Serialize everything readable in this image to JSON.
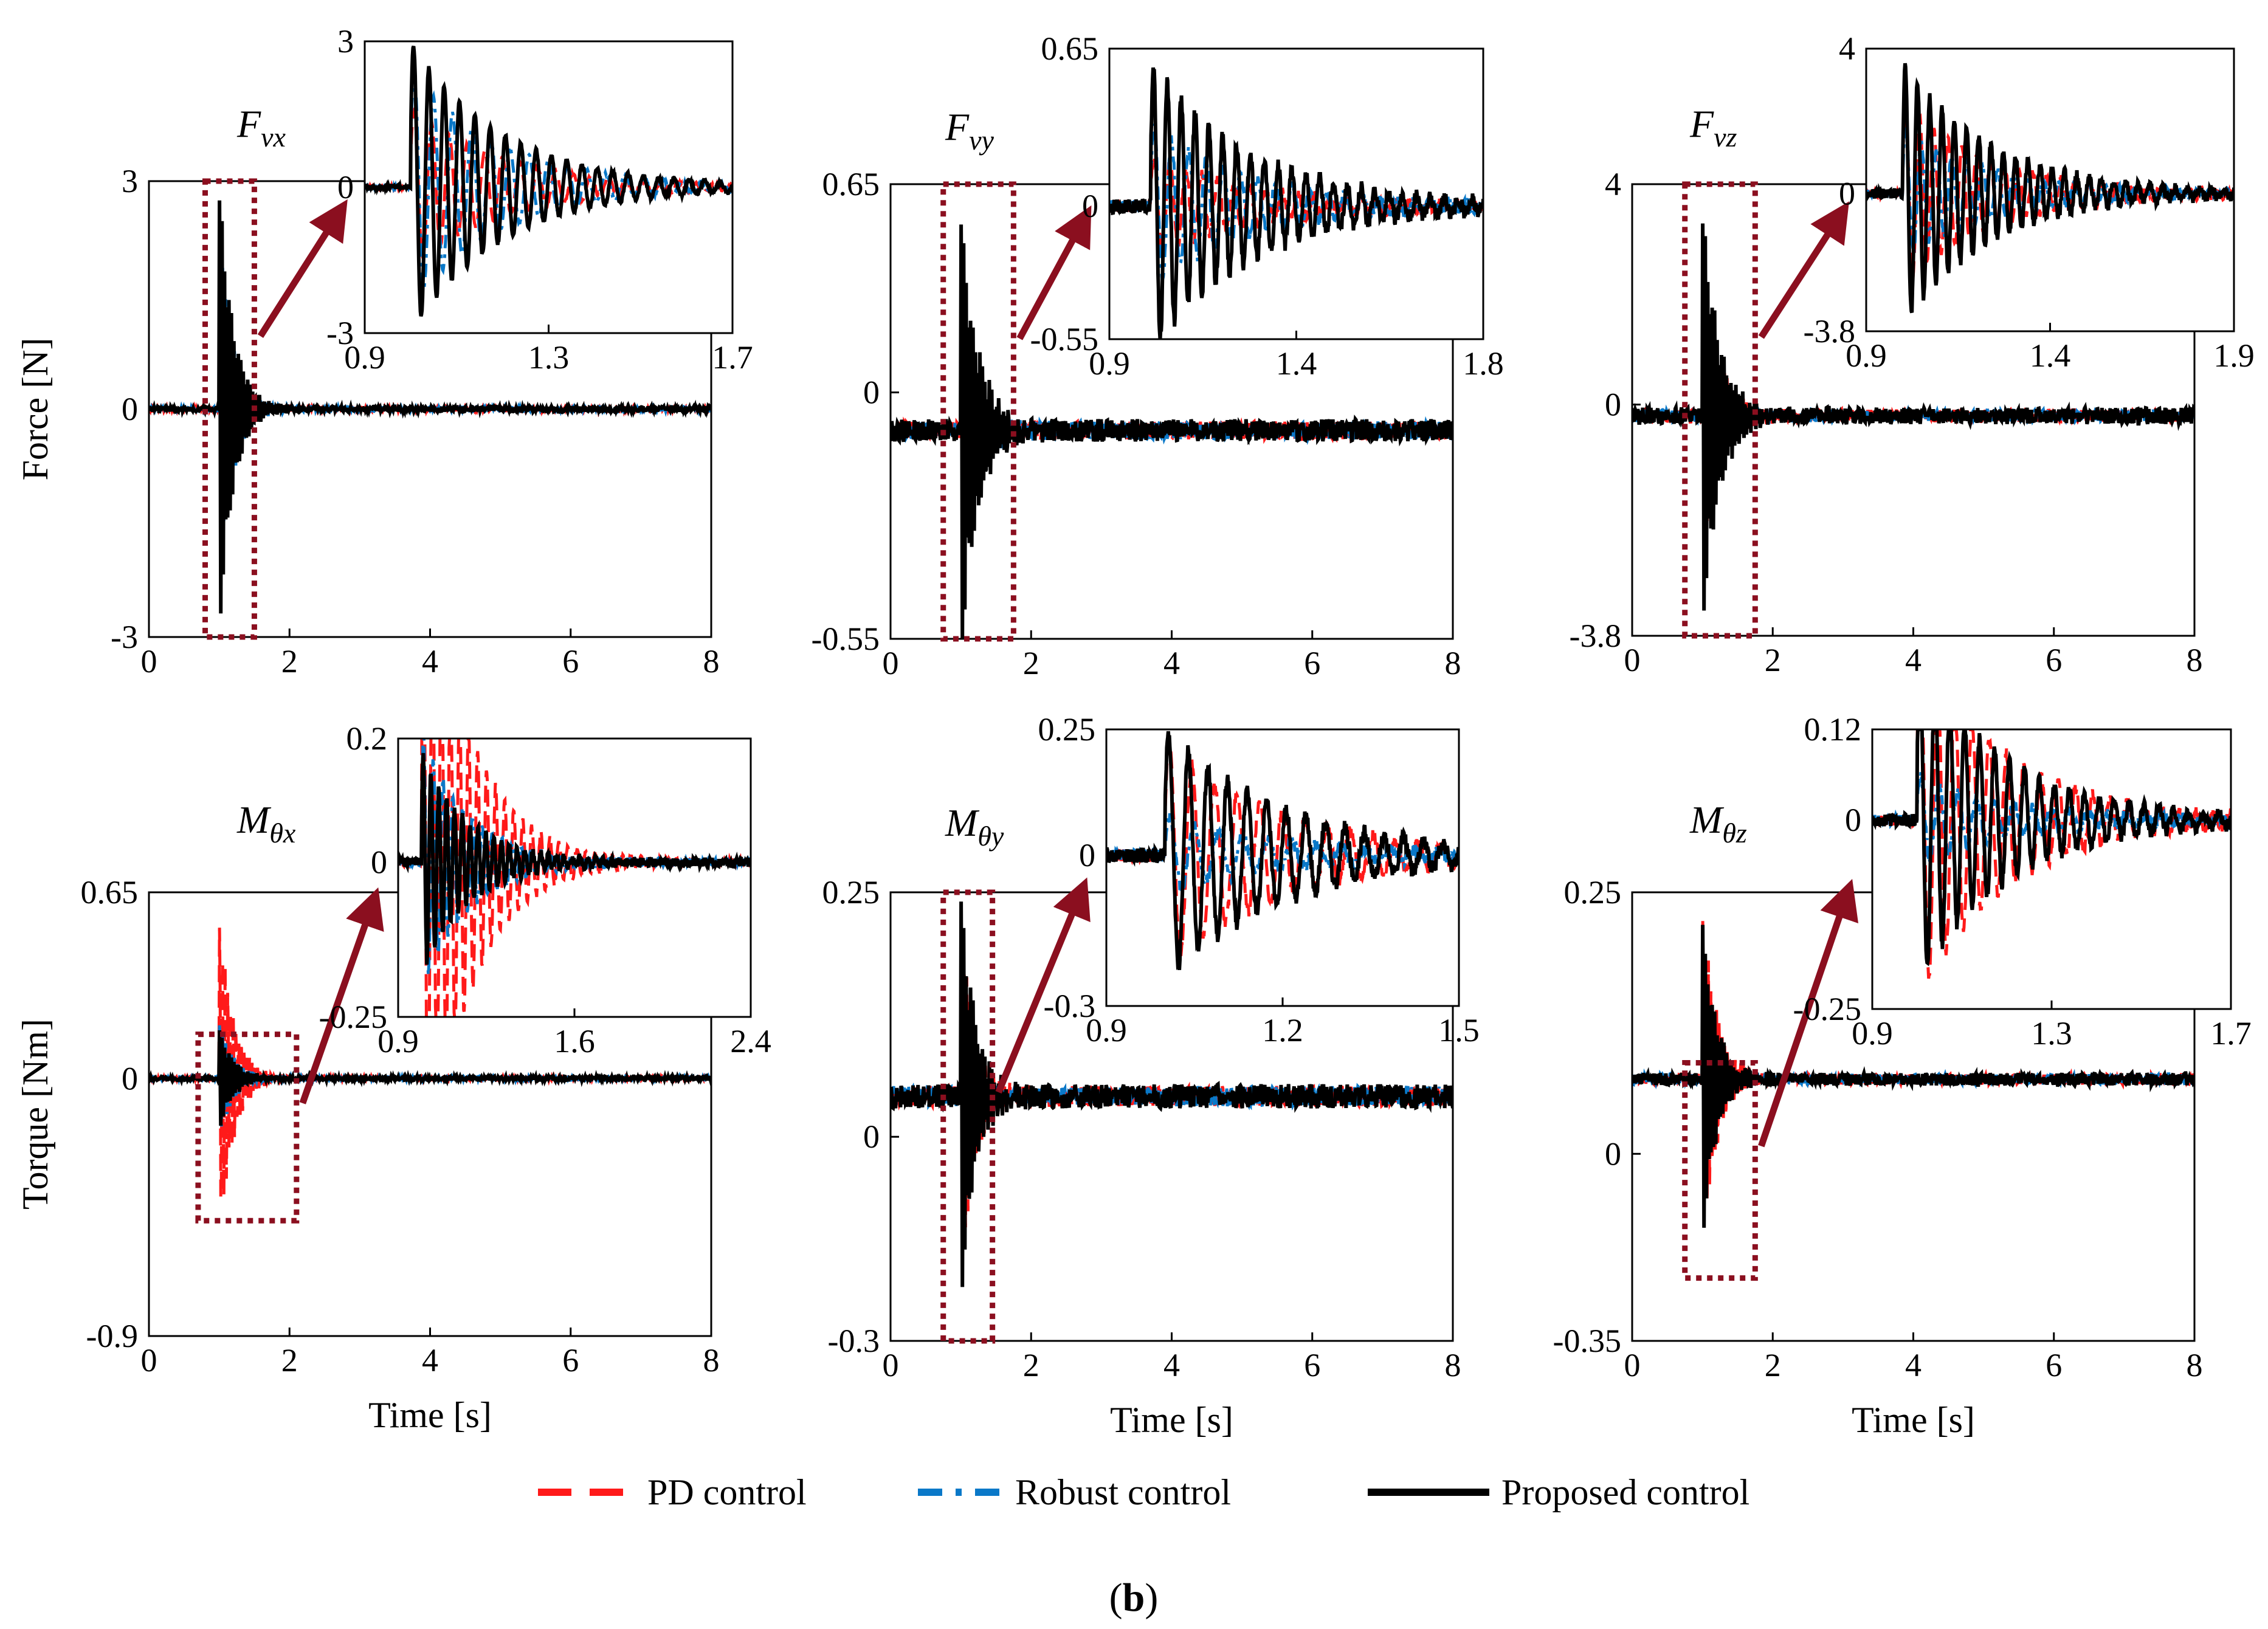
{
  "colors": {
    "pd": "#ff1a1a",
    "robust": "#0a78c8",
    "proposed": "#000000",
    "highlight": "#8b0f1f",
    "axis": "#000000"
  },
  "legend": [
    {
      "label": "PD control",
      "style": "dashed",
      "color": "#ff1a1a"
    },
    {
      "label": "Robust control",
      "style": "dash-dot",
      "color": "#0a78c8"
    },
    {
      "label": "Proposed control",
      "style": "solid",
      "color": "#000000"
    }
  ],
  "caption": {
    "open": "(",
    "letter": "b",
    "close": ")"
  },
  "chart_data": [
    {
      "type": "line",
      "title": "F_vx",
      "title_base": "F",
      "title_sub": "vx",
      "xlabel": "",
      "ylabel": "Force [N]",
      "xlim": [
        0,
        8
      ],
      "ylim": [
        -3,
        3
      ],
      "xticks": [
        "0",
        "2",
        "4",
        "6",
        "8"
      ],
      "yticks": [
        "-3",
        "0",
        "3"
      ],
      "event_time": 1.0,
      "peak": 3.0,
      "settle": 0.5,
      "series": [
        {
          "name": "PD control",
          "peak_fraction": 0.55,
          "noise_fraction": 0.01
        },
        {
          "name": "Robust control",
          "peak_fraction": 0.8,
          "noise_fraction": 0.01
        },
        {
          "name": "Proposed control",
          "peak_fraction": 1.0,
          "noise_fraction": 0.012
        }
      ],
      "highlight_window": [
        0.8,
        1.5
      ],
      "inset": {
        "xlim": [
          0.9,
          1.7
        ],
        "ylim": [
          -3,
          3
        ],
        "xticks": [
          "0.9",
          "1.3",
          "1.7"
        ],
        "yticks": [
          "-3",
          "0",
          "3"
        ]
      }
    },
    {
      "type": "line",
      "title": "F_vy",
      "title_base": "F",
      "title_sub": "vy",
      "xlabel": "",
      "ylabel": "",
      "xlim": [
        0,
        8
      ],
      "ylim": [
        -0.55,
        0.65
      ],
      "xticks": [
        "0",
        "2",
        "4",
        "6",
        "8"
      ],
      "yticks": [
        "-0.55",
        "0",
        "0.65"
      ],
      "event_time": 1.0,
      "peak": 0.6,
      "settle": 0.6,
      "series": [
        {
          "name": "PD control",
          "peak_fraction": 0.35,
          "noise_fraction": 0.04
        },
        {
          "name": "Robust control",
          "peak_fraction": 0.55,
          "noise_fraction": 0.04
        },
        {
          "name": "Proposed control",
          "peak_fraction": 1.0,
          "noise_fraction": 0.05
        }
      ],
      "highlight_window": [
        0.75,
        1.75
      ],
      "inset": {
        "xlim": [
          0.9,
          1.8
        ],
        "ylim": [
          -0.55,
          0.65
        ],
        "xticks": [
          "0.9",
          "1.4",
          "1.8"
        ],
        "yticks": [
          "-0.55",
          "0",
          "0.65"
        ]
      }
    },
    {
      "type": "line",
      "title": "F_vz",
      "title_base": "F",
      "title_sub": "vz",
      "xlabel": "",
      "ylabel": "",
      "xlim": [
        0,
        8
      ],
      "ylim": [
        -3.8,
        4
      ],
      "xticks": [
        "0",
        "2",
        "4",
        "6",
        "8"
      ],
      "yticks": [
        "-3.8",
        "0",
        "4"
      ],
      "event_time": 1.0,
      "peak": 3.6,
      "settle": 0.6,
      "series": [
        {
          "name": "PD control",
          "peak_fraction": 0.7,
          "noise_fraction": 0.03
        },
        {
          "name": "Robust control",
          "peak_fraction": 0.5,
          "noise_fraction": 0.03
        },
        {
          "name": "Proposed control",
          "peak_fraction": 1.0,
          "noise_fraction": 0.04
        }
      ],
      "highlight_window": [
        0.75,
        1.75
      ],
      "inset": {
        "xlim": [
          0.9,
          1.9
        ],
        "ylim": [
          -3.8,
          4
        ],
        "xticks": [
          "0.9",
          "1.4",
          "1.9"
        ],
        "yticks": [
          "-3.8",
          "0",
          "4"
        ]
      }
    },
    {
      "type": "line",
      "title": "M_θx",
      "title_base": "M",
      "title_sub": "θx",
      "xlabel": "Time [s]",
      "ylabel": "Torque [Nm]",
      "xlim": [
        0,
        8
      ],
      "ylim": [
        -0.9,
        0.65
      ],
      "xticks": [
        "0",
        "2",
        "4",
        "6",
        "8"
      ],
      "yticks": [
        "-0.9",
        "0",
        "0.65"
      ],
      "event_time": 1.0,
      "peak": 0.6,
      "settle": 0.5,
      "series": [
        {
          "name": "PD control",
          "peak_fraction": 1.0,
          "noise_fraction": 0.01
        },
        {
          "name": "Robust control",
          "peak_fraction": 0.35,
          "noise_fraction": 0.01
        },
        {
          "name": "Proposed control",
          "peak_fraction": 0.3,
          "noise_fraction": 0.012
        }
      ],
      "highlight_window": [
        0.7,
        2.1
      ],
      "inset": {
        "xlim": [
          0.9,
          2.4
        ],
        "ylim": [
          -0.25,
          0.2
        ],
        "xticks": [
          "0.9",
          "1.6",
          "2.4"
        ],
        "yticks": [
          "-0.25",
          "0",
          "0.2"
        ]
      }
    },
    {
      "type": "line",
      "title": "M_θy",
      "title_base": "M",
      "title_sub": "θy",
      "xlabel": "Time [s]",
      "ylabel": "",
      "xlim": [
        0,
        8
      ],
      "ylim": [
        -0.3,
        0.25
      ],
      "xticks": [
        "0",
        "2",
        "4",
        "6",
        "8"
      ],
      "yticks": [
        "-0.3",
        "0",
        "0.25"
      ],
      "event_time": 1.0,
      "peak": 0.25,
      "settle": 0.5,
      "series": [
        {
          "name": "PD control",
          "peak_fraction": 0.9,
          "noise_fraction": 0.05
        },
        {
          "name": "Robust control",
          "peak_fraction": 0.3,
          "noise_fraction": 0.05
        },
        {
          "name": "Proposed control",
          "peak_fraction": 1.0,
          "noise_fraction": 0.06
        }
      ],
      "highlight_window": [
        0.75,
        1.45
      ],
      "inset": {
        "xlim": [
          0.9,
          1.5
        ],
        "ylim": [
          -0.3,
          0.25
        ],
        "xticks": [
          "0.9",
          "1.2",
          "1.5"
        ],
        "yticks": [
          "-0.3",
          "0",
          "0.25"
        ]
      }
    },
    {
      "type": "line",
      "title": "M_θz",
      "title_base": "M",
      "title_sub": "θz",
      "xlabel": "Time [s]",
      "ylabel": "",
      "xlim": [
        0,
        8
      ],
      "ylim": [
        -0.35,
        0.25
      ],
      "xticks": [
        "0",
        "2",
        "4",
        "6",
        "8"
      ],
      "yticks": [
        "-0.35",
        "0",
        "0.25"
      ],
      "event_time": 1.0,
      "peak": 0.24,
      "settle": 0.5,
      "series": [
        {
          "name": "PD control",
          "peak_fraction": 1.0,
          "noise_fraction": 0.03
        },
        {
          "name": "Robust control",
          "peak_fraction": 0.25,
          "noise_fraction": 0.03
        },
        {
          "name": "Proposed control",
          "peak_fraction": 0.9,
          "noise_fraction": 0.035
        }
      ],
      "highlight_window": [
        0.75,
        1.75
      ],
      "inset": {
        "xlim": [
          0.9,
          1.7
        ],
        "ylim": [
          -0.25,
          0.12
        ],
        "xticks": [
          "0.9",
          "1.3",
          "1.7"
        ],
        "yticks": [
          "-0.25",
          "0",
          "0.12"
        ]
      }
    }
  ]
}
